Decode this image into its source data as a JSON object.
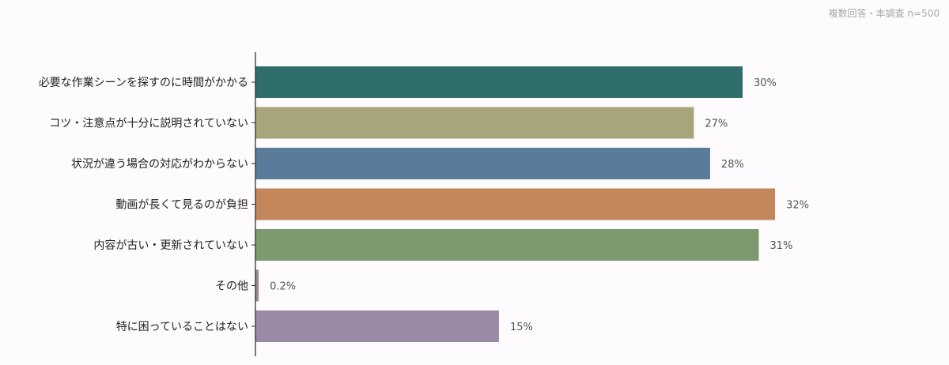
{
  "chart_data": {
    "type": "bar",
    "orientation": "horizontal",
    "note": "複数回答・本調査 n=500",
    "categories": [
      "必要な作業シーンを探すのに時間がかかる",
      "コツ・注意点が十分に説明されていない",
      "状況が違う場合の対応がわからない",
      "動画が長くて見るのが負担",
      "内容が古い・更新されていない",
      "その他",
      "特に困っていることはない"
    ],
    "values": [
      30,
      27,
      28,
      32,
      31,
      0.2,
      15
    ],
    "value_labels": [
      "30%",
      "27%",
      "28%",
      "32%",
      "31%",
      "0.2%",
      "15%"
    ],
    "colors": [
      "#2f6e6a",
      "#a9a57b",
      "#5a7b99",
      "#c2865a",
      "#7c9a6d",
      "#9a8b90",
      "#9a8aa5"
    ],
    "unit": "%",
    "xlim": [
      0,
      35
    ],
    "grid": false,
    "legend": "none"
  }
}
